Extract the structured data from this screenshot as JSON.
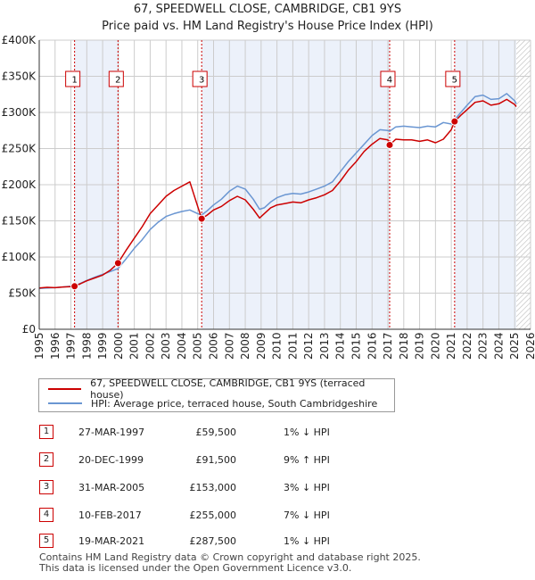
{
  "header": {
    "title_line1": "67, SPEEDWELL CLOSE, CAMBRIDGE, CB1 9YS",
    "title_line2": "Price paid vs. HM Land Registry's House Price Index (HPI)"
  },
  "colors": {
    "price_line": "#cc0000",
    "hpi_line": "#6a96d2",
    "shade": "#dce6f5",
    "grid": "#cccccc",
    "marker_border": "#cc0000"
  },
  "chart_data": {
    "type": "line",
    "title": "67, SPEEDWELL CLOSE, CAMBRIDGE, CB1 9YS",
    "subtitle": "Price paid vs. HM Land Registry's House Price Index (HPI)",
    "xlim": [
      1995,
      2026
    ],
    "ylim": [
      0,
      400000
    ],
    "y_ticks": [
      0,
      50000,
      100000,
      150000,
      200000,
      250000,
      300000,
      350000,
      400000
    ],
    "y_tick_labels": [
      "£0",
      "£50K",
      "£100K",
      "£150K",
      "£200K",
      "£250K",
      "£300K",
      "£350K",
      "£400K"
    ],
    "x_ticks": [
      1995,
      1996,
      1997,
      1998,
      1999,
      2000,
      2001,
      2002,
      2003,
      2004,
      2005,
      2006,
      2007,
      2008,
      2009,
      2010,
      2011,
      2012,
      2013,
      2014,
      2015,
      2016,
      2017,
      2018,
      2019,
      2020,
      2021,
      2022,
      2023,
      2024,
      2025,
      2026
    ],
    "x_tick_labels": [
      "1995",
      "1996",
      "1997",
      "1998",
      "1999",
      "2000",
      "2001",
      "2002",
      "2003",
      "2004",
      "2005",
      "2006",
      "2007",
      "2008",
      "2009",
      "2010",
      "2011",
      "2012",
      "2013",
      "2014",
      "2015",
      "2016",
      "2017",
      "2018",
      "2019",
      "2020",
      "2021",
      "2022",
      "2023",
      "2024",
      "2025",
      "2026"
    ],
    "grid": true,
    "future_hatch_from": 2025.1,
    "shaded_periods": [
      [
        1997.23,
        1999.97
      ],
      [
        2005.25,
        2017.11
      ],
      [
        2021.21,
        2025.1
      ]
    ],
    "series": [
      {
        "name": "67, SPEEDWELL CLOSE, CAMBRIDGE, CB1 9YS (terraced house)",
        "color": "#cc0000",
        "x": [
          1995.0,
          1995.5,
          1996.0,
          1996.5,
          1997.0,
          1997.23,
          1997.6,
          1998.0,
          1998.5,
          1999.0,
          1999.5,
          1999.97,
          2000.5,
          2001.0,
          2001.5,
          2002.0,
          2002.5,
          2003.0,
          2003.5,
          2004.0,
          2004.5,
          2005.0,
          2005.25,
          2005.6,
          2006.0,
          2006.5,
          2007.0,
          2007.5,
          2008.0,
          2008.5,
          2008.9,
          2009.2,
          2009.6,
          2010.0,
          2010.5,
          2011.0,
          2011.5,
          2012.0,
          2012.5,
          2013.0,
          2013.5,
          2014.0,
          2014.5,
          2015.0,
          2015.5,
          2016.0,
          2016.5,
          2017.0,
          2017.11,
          2017.5,
          2018.0,
          2018.5,
          2019.0,
          2019.5,
          2020.0,
          2020.5,
          2021.0,
          2021.21,
          2021.6,
          2022.0,
          2022.5,
          2023.0,
          2023.5,
          2024.0,
          2024.5,
          2025.0,
          2025.1
        ],
        "values": [
          57000,
          58000,
          57500,
          58500,
          59000,
          59500,
          63000,
          67000,
          71000,
          75000,
          82000,
          91500,
          110000,
          126000,
          142000,
          160000,
          172000,
          184000,
          192000,
          198000,
          204000,
          170000,
          153000,
          158000,
          165000,
          170000,
          178000,
          184000,
          179000,
          166000,
          154000,
          160000,
          168000,
          172000,
          174000,
          176000,
          175000,
          179000,
          182000,
          186000,
          192000,
          205000,
          220000,
          232000,
          246000,
          256000,
          264000,
          262000,
          255000,
          263000,
          262000,
          262000,
          260000,
          262000,
          258000,
          263000,
          276000,
          287500,
          296000,
          304000,
          314000,
          316000,
          310000,
          312000,
          318000,
          311000,
          308000
        ]
      },
      {
        "name": "HPI: Average price, terraced house, South Cambridgeshire",
        "color": "#6a96d2",
        "x": [
          1995.0,
          1995.5,
          1996.0,
          1996.5,
          1997.0,
          1997.23,
          1997.6,
          1998.0,
          1998.5,
          1999.0,
          1999.5,
          1999.97,
          2000.5,
          2001.0,
          2001.5,
          2002.0,
          2002.5,
          2003.0,
          2003.5,
          2004.0,
          2004.5,
          2005.0,
          2005.25,
          2005.6,
          2006.0,
          2006.5,
          2007.0,
          2007.5,
          2008.0,
          2008.5,
          2008.9,
          2009.2,
          2009.6,
          2010.0,
          2010.5,
          2011.0,
          2011.5,
          2012.0,
          2012.5,
          2013.0,
          2013.5,
          2014.0,
          2014.5,
          2015.0,
          2015.5,
          2016.0,
          2016.5,
          2017.0,
          2017.11,
          2017.5,
          2018.0,
          2018.5,
          2019.0,
          2019.5,
          2020.0,
          2020.5,
          2021.0,
          2021.21,
          2021.6,
          2022.0,
          2022.5,
          2023.0,
          2023.5,
          2024.0,
          2024.5,
          2025.0,
          2025.1
        ],
        "values": [
          56500,
          57000,
          57500,
          58500,
          59500,
          60000,
          63500,
          67500,
          72000,
          76000,
          80000,
          84000,
          98000,
          112000,
          124000,
          138000,
          148000,
          156000,
          160000,
          163000,
          165000,
          160000,
          158000,
          164000,
          172000,
          180000,
          191000,
          198000,
          194000,
          180000,
          166000,
          168000,
          176000,
          182000,
          186000,
          188000,
          187000,
          190000,
          194000,
          198000,
          204000,
          218000,
          232000,
          244000,
          256000,
          268000,
          276000,
          275000,
          274000,
          280000,
          281000,
          280000,
          279000,
          281000,
          280000,
          286000,
          284000,
          290000,
          300000,
          310000,
          322000,
          324000,
          318000,
          319000,
          326000,
          316000,
          312000
        ]
      }
    ],
    "sale_markers": [
      {
        "num": "1",
        "x": 1997.23,
        "value": 59500
      },
      {
        "num": "2",
        "x": 1999.97,
        "value": 91500
      },
      {
        "num": "3",
        "x": 2005.25,
        "value": 153000
      },
      {
        "num": "4",
        "x": 2017.11,
        "value": 255000
      },
      {
        "num": "5",
        "x": 2021.21,
        "value": 287500
      }
    ],
    "legend": [
      "67, SPEEDWELL CLOSE, CAMBRIDGE, CB1 9YS (terraced house)",
      "HPI: Average price, terraced house, South Cambridgeshire"
    ]
  },
  "sales": [
    {
      "num": "1",
      "date": "27-MAR-1997",
      "price": "£59,500",
      "hpi": "1% ↓ HPI"
    },
    {
      "num": "2",
      "date": "20-DEC-1999",
      "price": "£91,500",
      "hpi": "9% ↑ HPI"
    },
    {
      "num": "3",
      "date": "31-MAR-2005",
      "price": "£153,000",
      "hpi": "3% ↓ HPI"
    },
    {
      "num": "4",
      "date": "10-FEB-2017",
      "price": "£255,000",
      "hpi": "7% ↓ HPI"
    },
    {
      "num": "5",
      "date": "19-MAR-2021",
      "price": "£287,500",
      "hpi": "1% ↓ HPI"
    }
  ],
  "footer": {
    "line1": "Contains HM Land Registry data © Crown copyright and database right 2025.",
    "line2": "This data is licensed under the Open Government Licence v3.0."
  }
}
